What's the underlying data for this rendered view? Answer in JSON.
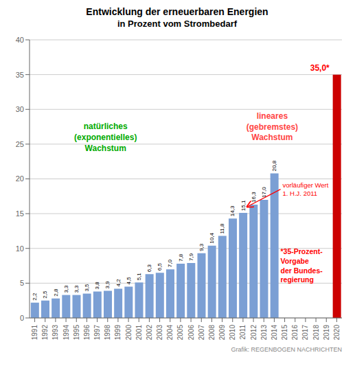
{
  "chart_data": {
    "type": "bar",
    "title": "Entwicklung der erneuerbaren Energien",
    "subtitle": "in Prozent vom Strombedarf",
    "categories": [
      "1991",
      "1992",
      "1993",
      "1994",
      "1995",
      "1996",
      "1997",
      "1998",
      "1999",
      "2000",
      "2001",
      "2002",
      "2003",
      "2004",
      "2005",
      "2006",
      "2007",
      "2008",
      "2009",
      "2010",
      "2011",
      "2012",
      "2013",
      "2014",
      "2015",
      "2016",
      "2017",
      "2018",
      "2019",
      "2020"
    ],
    "values": [
      2.2,
      2.5,
      2.8,
      3.3,
      3.3,
      3.5,
      3.8,
      3.9,
      4.2,
      4.5,
      5.1,
      6.3,
      6.5,
      7.0,
      7.8,
      7.9,
      9.3,
      10.4,
      11.8,
      14.3,
      15.1,
      16.3,
      17.0,
      20.8,
      null,
      null,
      null,
      null,
      null,
      35.0
    ],
    "value_labels": [
      "2,2",
      "2,5",
      "2,8",
      "3,3",
      "3,3",
      "3,5",
      "3,8",
      "3,9",
      "4,2",
      "4,5",
      "5,1",
      "6,3",
      "6,5",
      "7,0",
      "7,8",
      "7,9",
      "9,3",
      "10,4",
      "11,8",
      "14,3",
      "15,1",
      "16,3",
      "17,0",
      "20,8",
      null,
      null,
      null,
      null,
      null,
      null
    ],
    "colors": [
      "#7b9fd4",
      "#7b9fd4",
      "#7b9fd4",
      "#7b9fd4",
      "#7b9fd4",
      "#7b9fd4",
      "#7b9fd4",
      "#7b9fd4",
      "#7b9fd4",
      "#7b9fd4",
      "#7b9fd4",
      "#7b9fd4",
      "#7b9fd4",
      "#7b9fd4",
      "#7b9fd4",
      "#7b9fd4",
      "#7b9fd4",
      "#7b9fd4",
      "#7b9fd4",
      "#7b9fd4",
      "#7b9fd4",
      "#7b9fd4",
      "#7b9fd4",
      "#7b9fd4",
      "#7b9fd4",
      "#7b9fd4",
      "#7b9fd4",
      "#7b9fd4",
      "#7b9fd4",
      "#cc0000"
    ],
    "ylim": [
      0,
      40
    ],
    "yticks": [
      0,
      5,
      10,
      15,
      20,
      25,
      30,
      35,
      40
    ],
    "grid": true,
    "data_labels": true,
    "annotations": [
      {
        "text": "35,0*",
        "color": "red"
      },
      {
        "text": "natürliches\n(exponentielles)\nWachstum",
        "color": "#00aa00"
      },
      {
        "text": "lineares\n(gebremstes)\nWachstum",
        "color": "#ff4444"
      },
      {
        "text": "vorläufiger Wert\n1. H.J. 2011",
        "color": "red"
      },
      {
        "text": "*35-Prozent-\nVorgabe\nder Bundes-\nregierung",
        "color": "red"
      },
      {
        "text": "Grafik:  REGENBOGEN NACHRICHTEN",
        "color": "#888888"
      }
    ]
  }
}
